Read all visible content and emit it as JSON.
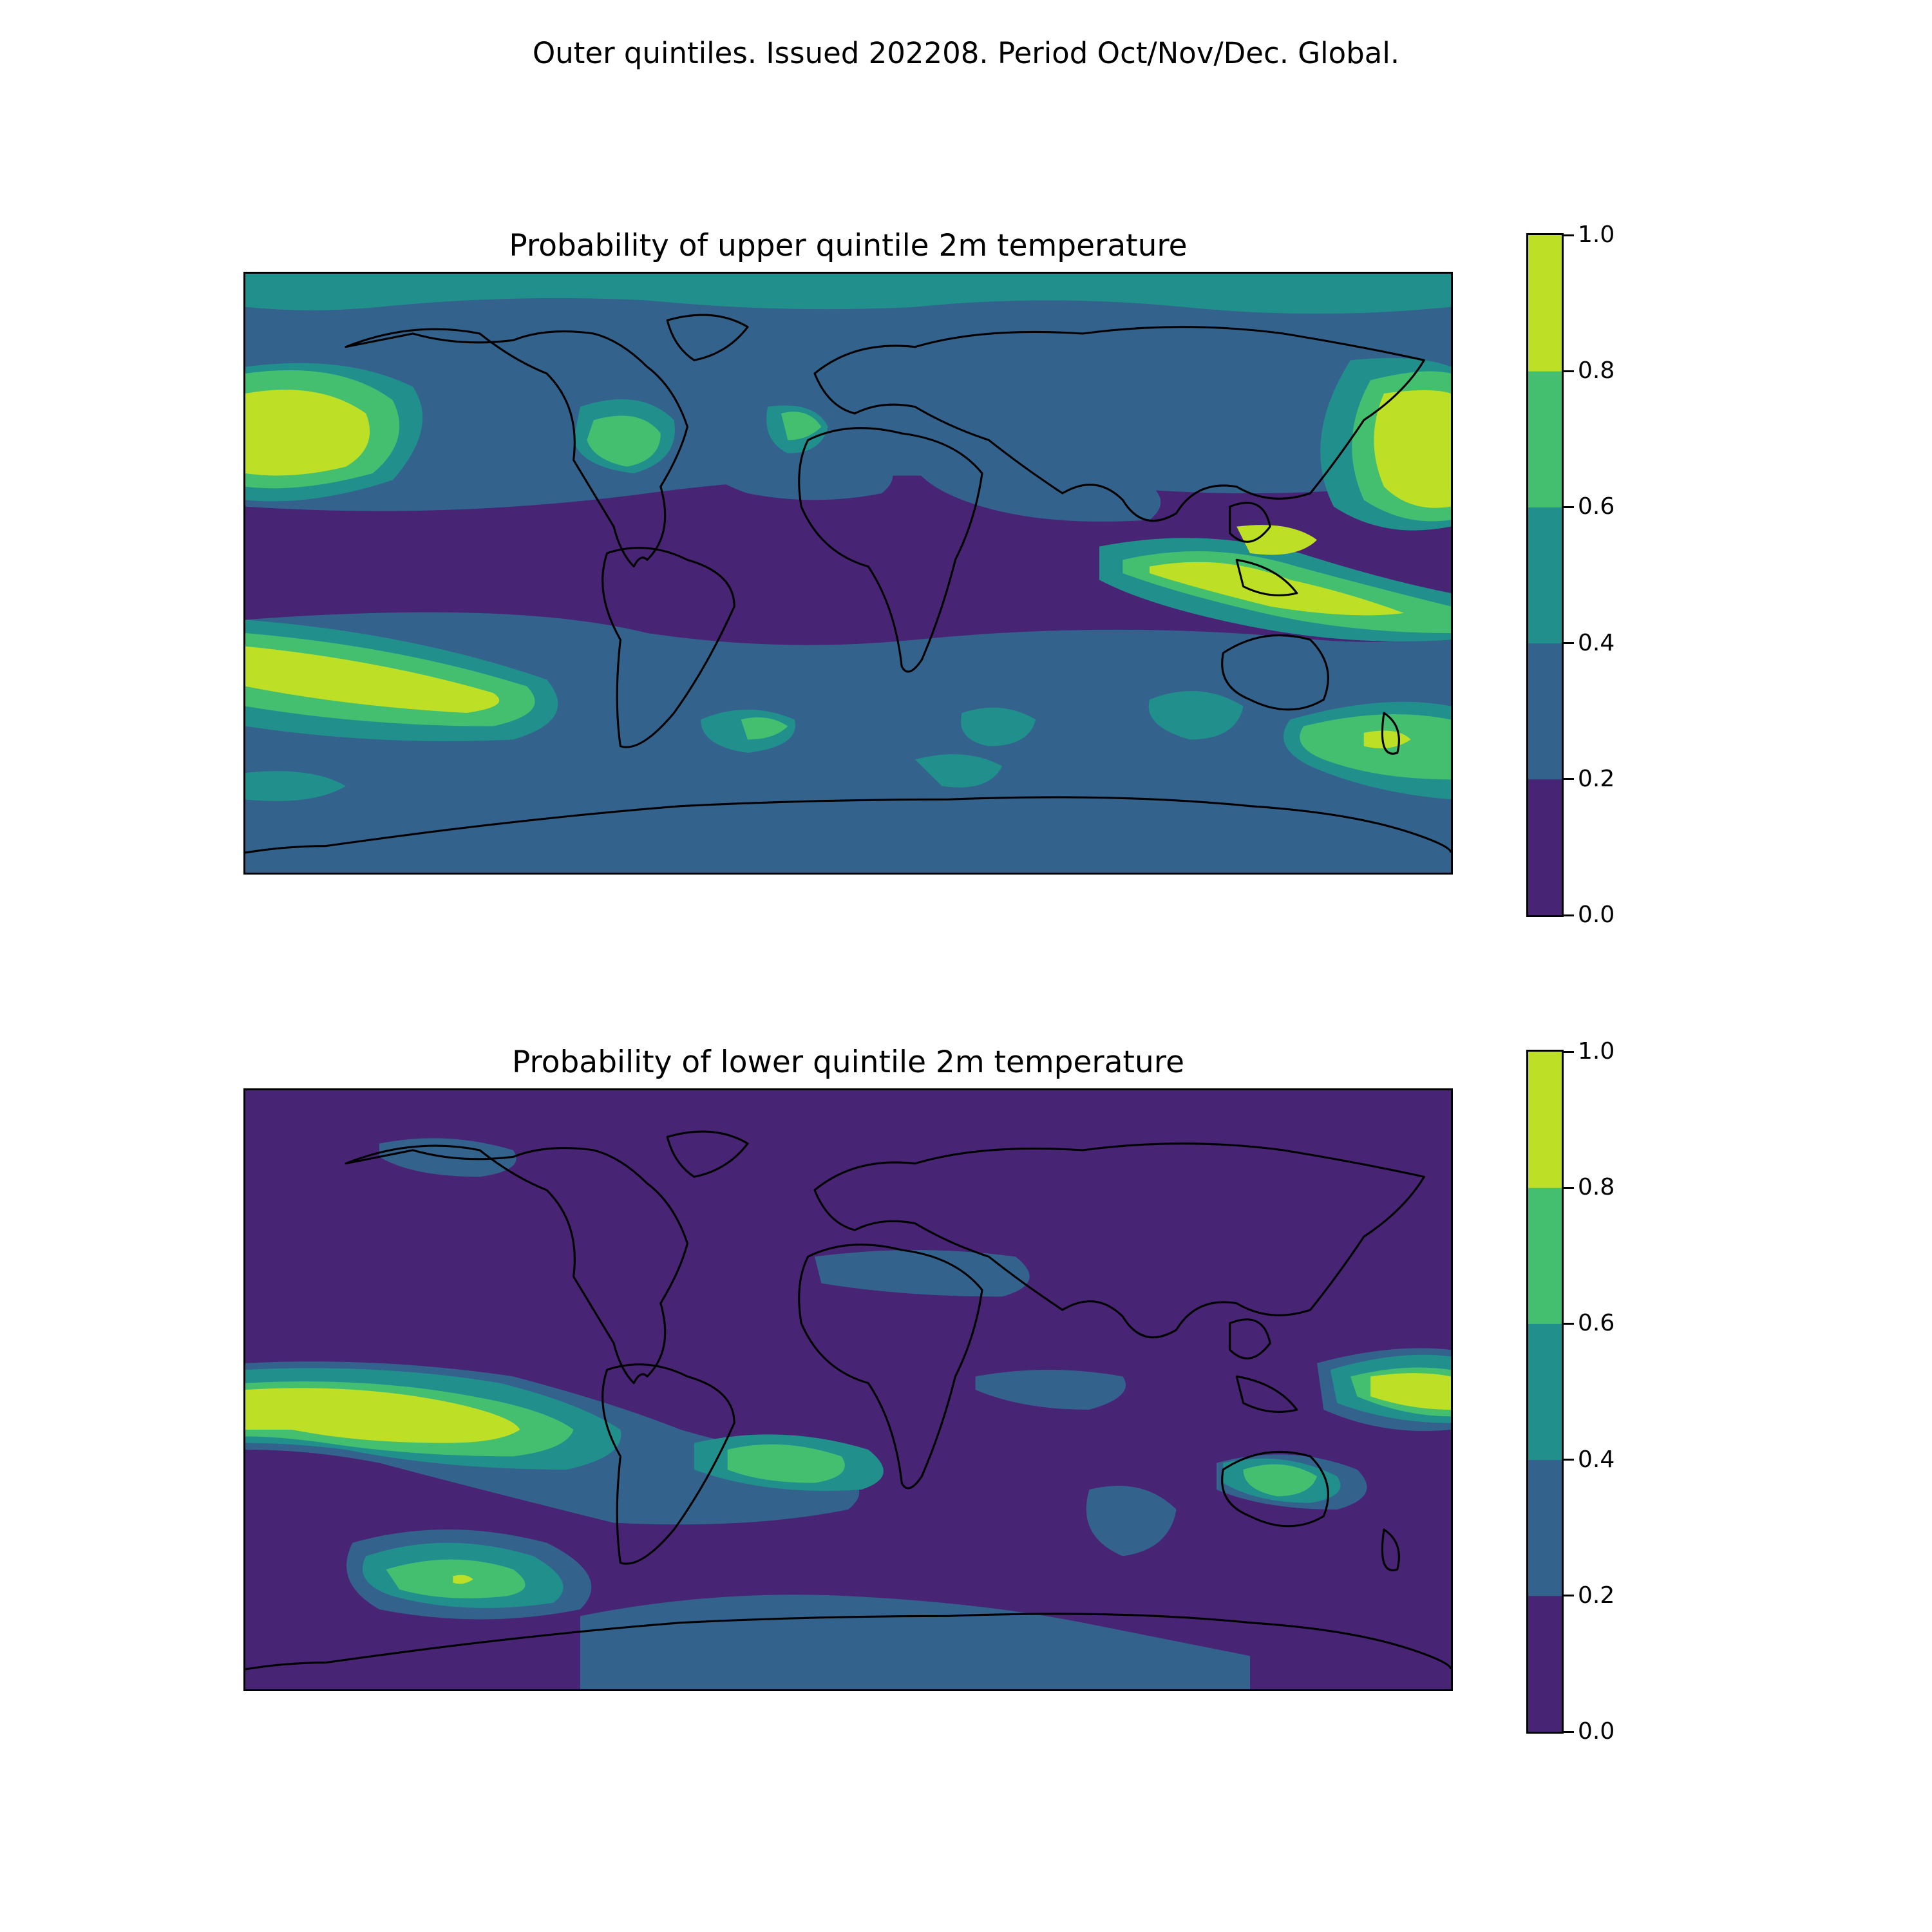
{
  "figure": {
    "title": "Outer quintiles. Issued 202208. Period Oct/Nov/Dec. Global."
  },
  "colorbar": {
    "levels": [
      0.0,
      0.2,
      0.4,
      0.6,
      0.8,
      1.0
    ],
    "tick_labels": [
      "0.0",
      "0.2",
      "0.4",
      "0.6",
      "0.8",
      "1.0"
    ],
    "colors": [
      "#482475",
      "#33638d",
      "#21908d",
      "#44bf70",
      "#bddf26"
    ]
  },
  "coastline_color": "#000000",
  "panels": [
    {
      "title": "Probability of upper quintile 2m temperature",
      "field_name": "2m temperature upper quintile probability",
      "background_level": 0,
      "regions": [
        {
          "name": "Arctic Ocean",
          "level": 2
        },
        {
          "name": "North Pacific (east)",
          "level": 4
        },
        {
          "name": "North Pacific (west)",
          "level": 4
        },
        {
          "name": "South Pacific band",
          "level": 4
        },
        {
          "name": "Maritime Continent",
          "level": 4
        },
        {
          "name": "Tasman Sea",
          "level": 3
        },
        {
          "name": "Northwest Atlantic",
          "level": 3
        },
        {
          "name": "Eurasia",
          "level": 1
        },
        {
          "name": "Southern Ocean",
          "level": 1
        }
      ]
    },
    {
      "title": "Probability of lower quintile 2m temperature",
      "field_name": "2m temperature lower quintile probability",
      "background_level": 0,
      "regions": [
        {
          "name": "Equatorial Pacific",
          "level": 4
        },
        {
          "name": "Southeast Pacific",
          "level": 3
        },
        {
          "name": "Australia",
          "level": 2
        },
        {
          "name": "Western Pacific warm pool",
          "level": 4
        },
        {
          "name": "South Atlantic",
          "level": 3
        },
        {
          "name": "Indian Ocean",
          "level": 1
        },
        {
          "name": "Antarctic coast",
          "level": 1
        }
      ]
    }
  ]
}
